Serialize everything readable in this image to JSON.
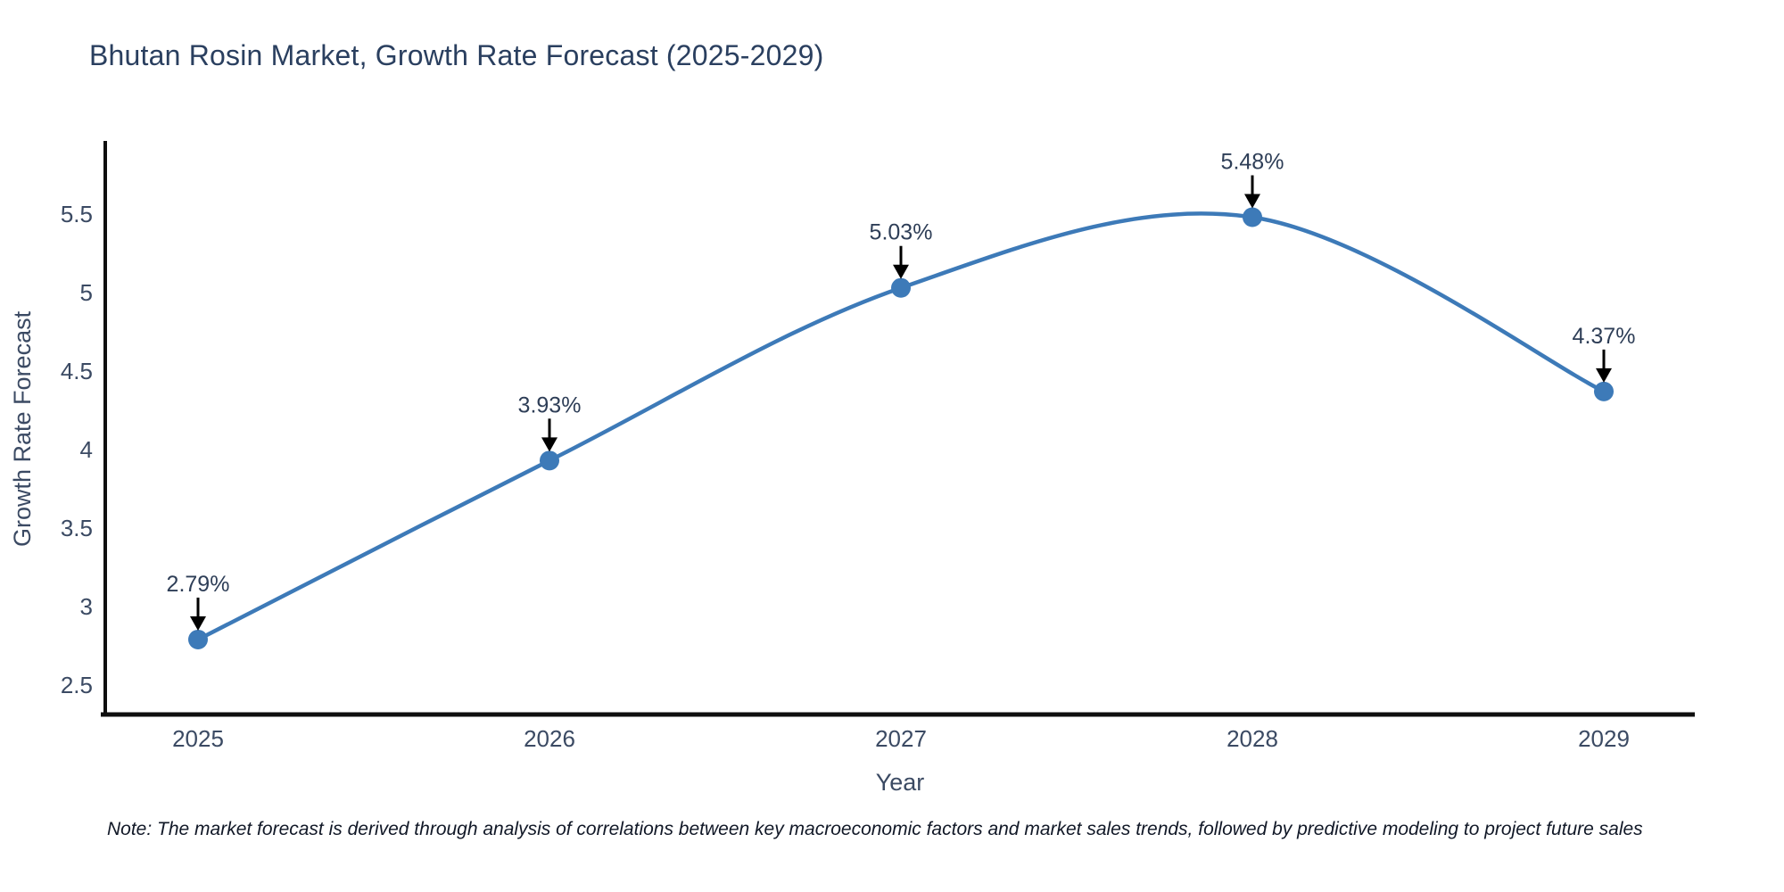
{
  "title": "Bhutan Rosin Market, Growth Rate Forecast (2025-2029)",
  "note": "Note: The market forecast is derived through analysis of correlations between key macroeconomic factors and market sales trends, followed by predictive modeling to project future sales",
  "chart_data": {
    "type": "line",
    "title": "Bhutan Rosin Market, Growth Rate Forecast (2025-2029)",
    "x": [
      2025,
      2026,
      2027,
      2028,
      2029
    ],
    "y": [
      2.79,
      3.93,
      5.03,
      5.48,
      4.37
    ],
    "point_labels": [
      "2.79%",
      "3.93%",
      "5.03%",
      "5.48%",
      "4.37%"
    ],
    "series_name": "Growth Rate Forecast",
    "xlabel": "Year",
    "ylabel": "Growth Rate Forecast",
    "xticks": [
      "2025",
      "2026",
      "2027",
      "2028",
      "2029"
    ],
    "yticks": [
      2.5,
      3,
      3.5,
      4,
      4.5,
      5,
      5.5
    ],
    "xlim": [
      2024.74,
      2029.26
    ],
    "ylim": [
      2.32,
      5.96
    ],
    "line_shape": "spline",
    "grid": false,
    "legend_position": "none",
    "annotation_style": "black-down-arrow-to-point",
    "colors": {
      "line": "#3d7ab8",
      "marker": "#3d7ab8",
      "annotation_arrow": "#000000",
      "annotation_text": "#2e3e57",
      "axis_line": "#0f0f0f",
      "tick_text": "#3b4a63",
      "title_text": "#2a3f5f",
      "note_text": "#111827",
      "background": "#ffffff"
    }
  }
}
